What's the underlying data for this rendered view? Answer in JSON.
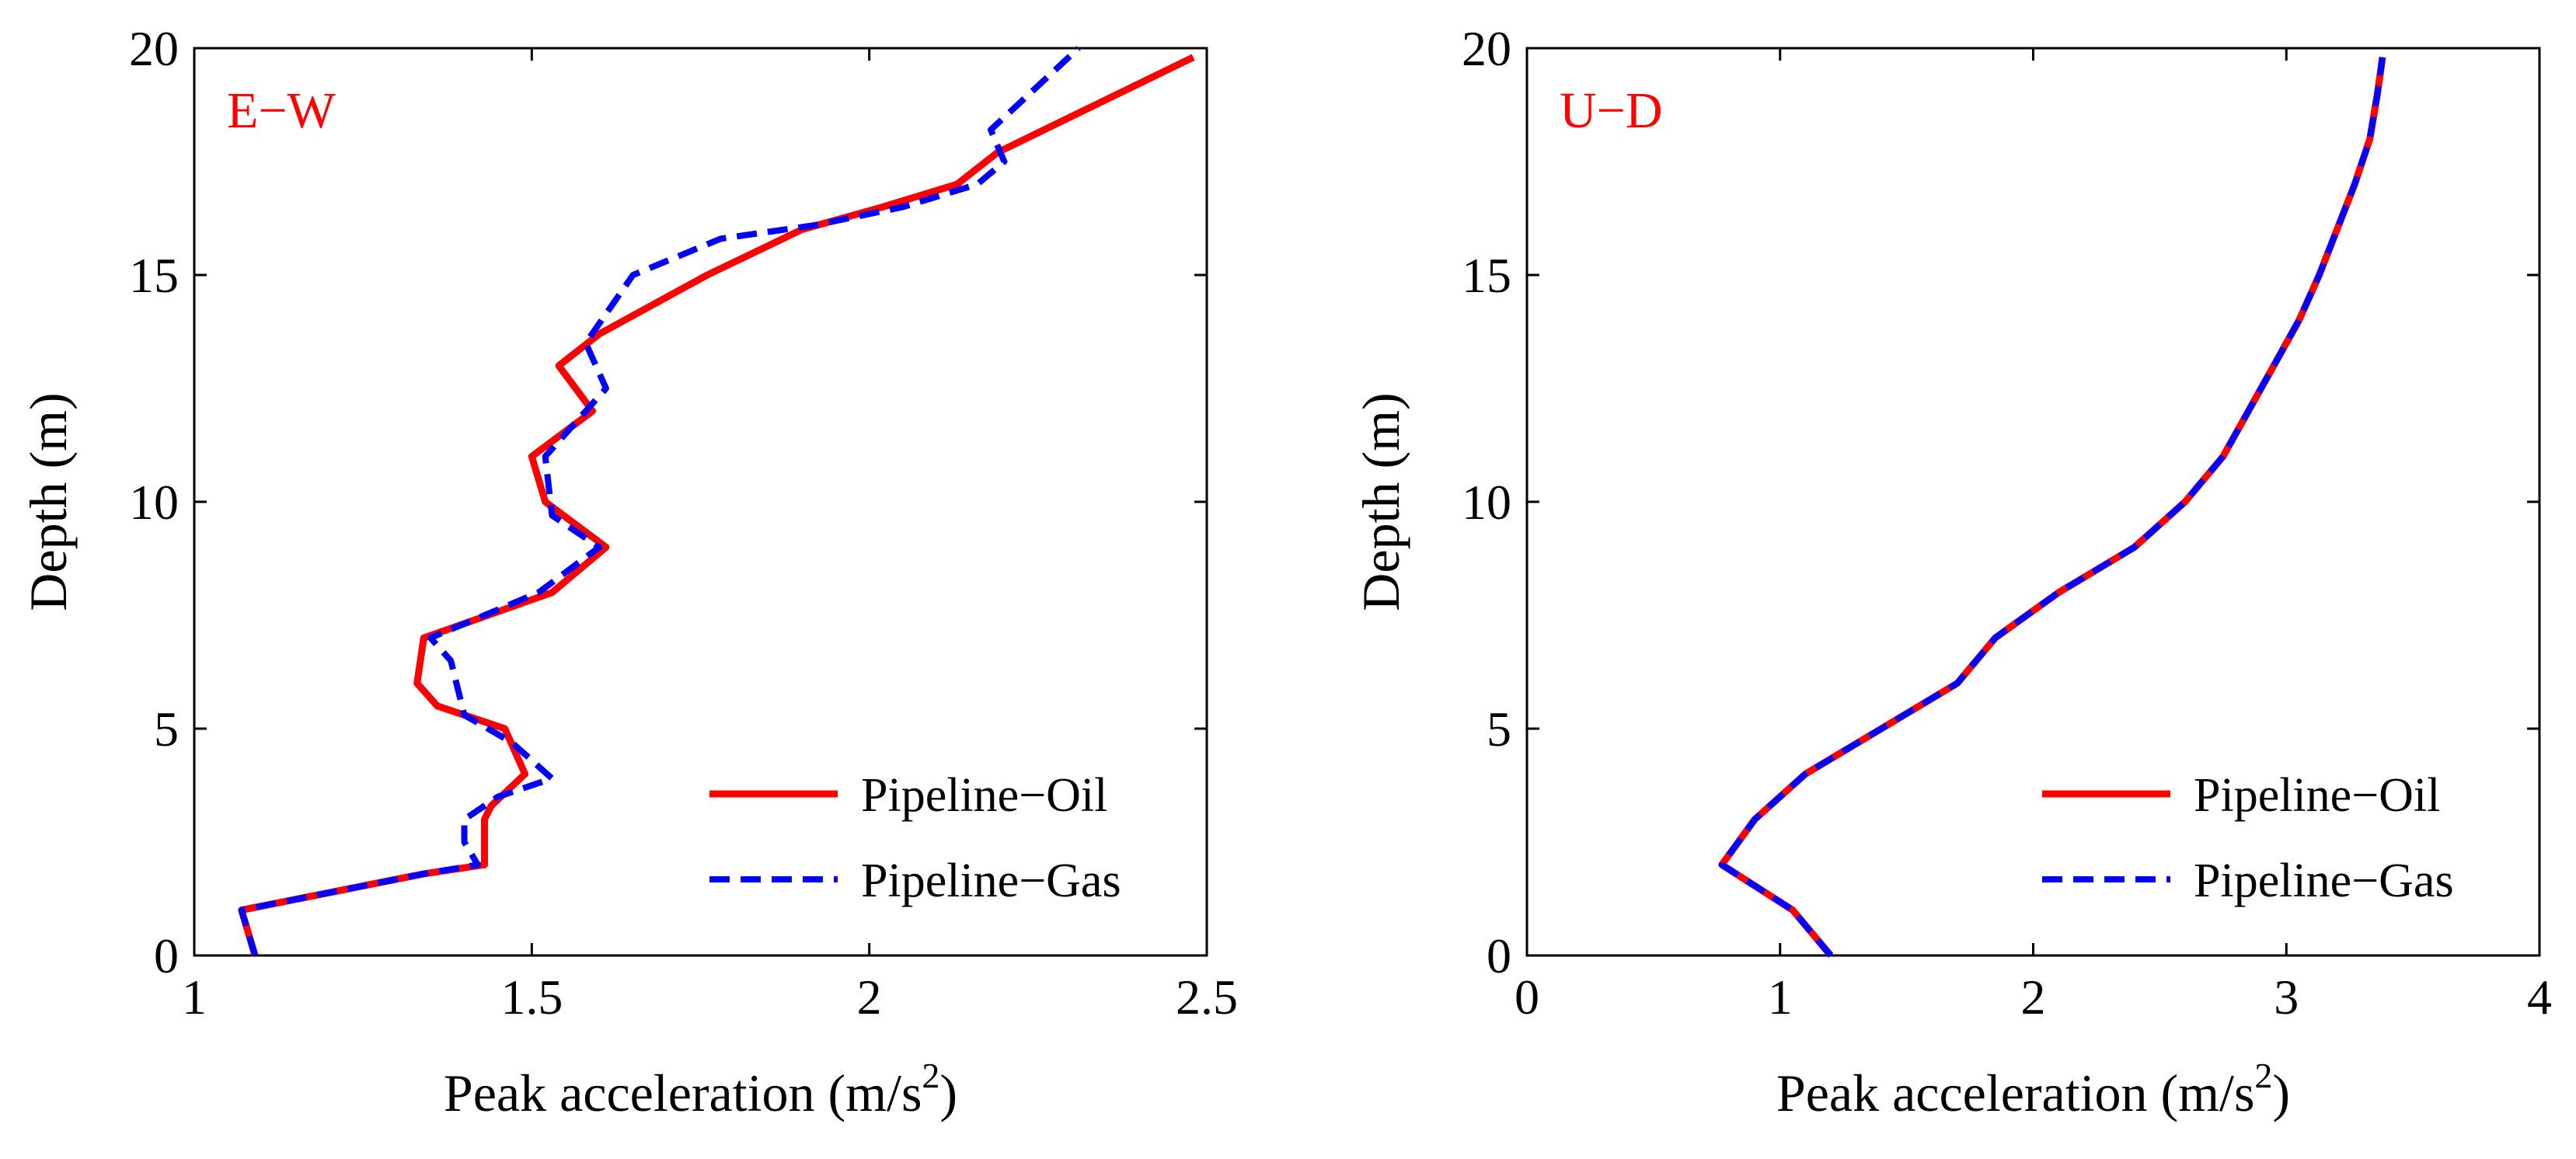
{
  "chart_data": [
    {
      "type": "line",
      "panel_label": "E−W",
      "xlabel": "Peak acceleration (m/s",
      "xlabel_sup": "2",
      "xlabel_close": ")",
      "ylabel": "Depth (m)",
      "xlim": [
        1,
        2.5
      ],
      "ylim": [
        0,
        20
      ],
      "xticks": [
        1,
        1.5,
        2,
        2.5
      ],
      "xtick_labels": [
        "1",
        "1.5",
        "2",
        "2.5"
      ],
      "yticks": [
        0,
        5,
        10,
        15,
        20
      ],
      "ytick_labels": [
        "0",
        "5",
        "10",
        "15",
        "20"
      ],
      "grid": false,
      "legend_position": "bottom-right",
      "series": [
        {
          "name": "Pipeline−Oil",
          "style": "solid",
          "color": "#ff0000",
          "points": [
            [
              1.09,
              0
            ],
            [
              1.07,
              1
            ],
            [
              1.34,
              1.8
            ],
            [
              1.43,
              2
            ],
            [
              1.43,
              3
            ],
            [
              1.44,
              3.3
            ],
            [
              1.49,
              4
            ],
            [
              1.46,
              5
            ],
            [
              1.36,
              5.5
            ],
            [
              1.33,
              6
            ],
            [
              1.34,
              7
            ],
            [
              1.53,
              8
            ],
            [
              1.61,
              9
            ],
            [
              1.52,
              10
            ],
            [
              1.5,
              11
            ],
            [
              1.59,
              12
            ],
            [
              1.54,
              13
            ],
            [
              1.6,
              13.7
            ],
            [
              1.76,
              15
            ],
            [
              1.9,
              16
            ],
            [
              2.02,
              16.5
            ],
            [
              2.13,
              17
            ],
            [
              2.19,
              17.7
            ],
            [
              2.48,
              19.8
            ]
          ]
        },
        {
          "name": "Pipeline−Gas",
          "style": "dashed",
          "color": "#0000ff",
          "points": [
            [
              1.09,
              0
            ],
            [
              1.07,
              1
            ],
            [
              1.34,
              1.8
            ],
            [
              1.42,
              2
            ],
            [
              1.4,
              2.5
            ],
            [
              1.4,
              3
            ],
            [
              1.45,
              3.5
            ],
            [
              1.53,
              3.9
            ],
            [
              1.47,
              4.7
            ],
            [
              1.4,
              5.3
            ],
            [
              1.38,
              6.5
            ],
            [
              1.35,
              7
            ],
            [
              1.51,
              8
            ],
            [
              1.6,
              9
            ],
            [
              1.53,
              9.7
            ],
            [
              1.52,
              11
            ],
            [
              1.61,
              12.5
            ],
            [
              1.58,
              13.5
            ],
            [
              1.65,
              15
            ],
            [
              1.78,
              15.8
            ],
            [
              1.92,
              16.1
            ],
            [
              2.05,
              16.5
            ],
            [
              2.16,
              17
            ],
            [
              2.2,
              17.5
            ],
            [
              2.18,
              18.2
            ],
            [
              2.31,
              20
            ]
          ]
        }
      ]
    },
    {
      "type": "line",
      "panel_label": "U−D",
      "xlabel": "Peak acceleration (m/s",
      "xlabel_sup": "2",
      "xlabel_close": ")",
      "ylabel": "Depth (m)",
      "xlim": [
        0,
        4
      ],
      "ylim": [
        0,
        20
      ],
      "xticks": [
        0,
        1,
        2,
        3,
        4
      ],
      "xtick_labels": [
        "0",
        "1",
        "2",
        "3",
        "4"
      ],
      "yticks": [
        0,
        5,
        10,
        15,
        20
      ],
      "ytick_labels": [
        "0",
        "5",
        "10",
        "15",
        "20"
      ],
      "grid": false,
      "legend_position": "bottom-right",
      "series": [
        {
          "name": "Pipeline−Oil",
          "style": "solid",
          "color": "#ff0000",
          "points": [
            [
              1.2,
              0
            ],
            [
              1.05,
              1
            ],
            [
              0.77,
              2
            ],
            [
              0.9,
              3
            ],
            [
              1.1,
              4
            ],
            [
              1.4,
              5
            ],
            [
              1.7,
              6
            ],
            [
              1.85,
              7
            ],
            [
              2.1,
              8
            ],
            [
              2.4,
              9
            ],
            [
              2.6,
              10
            ],
            [
              2.75,
              11
            ],
            [
              2.85,
              12
            ],
            [
              2.95,
              13
            ],
            [
              3.05,
              14
            ],
            [
              3.13,
              15
            ],
            [
              3.2,
              16
            ],
            [
              3.27,
              17
            ],
            [
              3.33,
              18
            ],
            [
              3.36,
              19
            ],
            [
              3.38,
              19.8
            ]
          ]
        },
        {
          "name": "Pipeline−Gas",
          "style": "dashed",
          "color": "#0000ff",
          "points": [
            [
              1.2,
              0
            ],
            [
              1.05,
              1
            ],
            [
              0.77,
              2
            ],
            [
              0.9,
              3
            ],
            [
              1.1,
              4
            ],
            [
              1.4,
              5
            ],
            [
              1.7,
              6
            ],
            [
              1.85,
              7
            ],
            [
              2.1,
              8
            ],
            [
              2.4,
              9
            ],
            [
              2.6,
              10
            ],
            [
              2.75,
              11
            ],
            [
              2.85,
              12
            ],
            [
              2.95,
              13
            ],
            [
              3.05,
              14
            ],
            [
              3.13,
              15
            ],
            [
              3.2,
              16
            ],
            [
              3.27,
              17
            ],
            [
              3.33,
              18
            ],
            [
              3.36,
              19
            ],
            [
              3.38,
              19.8
            ]
          ]
        }
      ]
    }
  ]
}
